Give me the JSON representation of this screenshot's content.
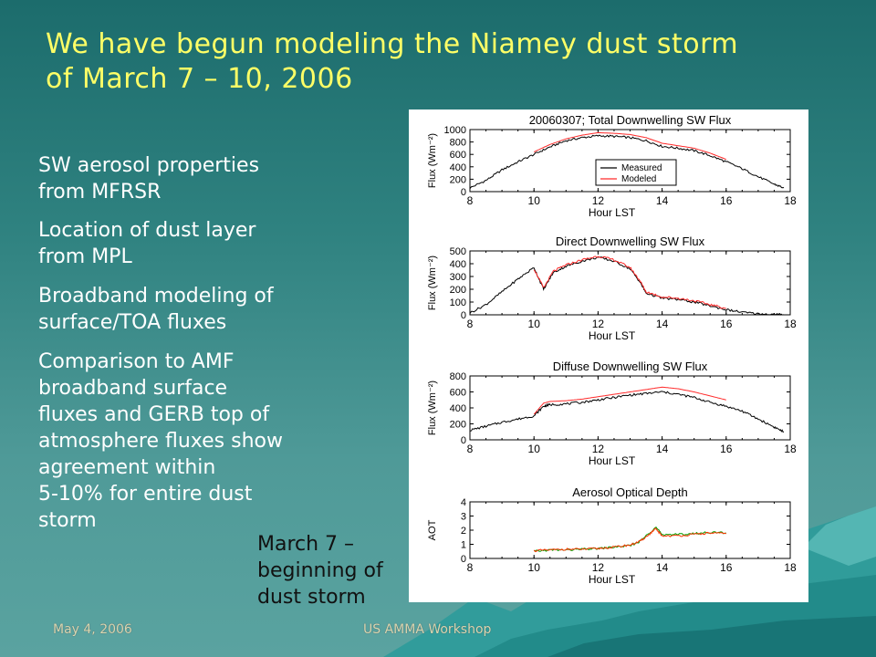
{
  "slide": {
    "title_lines": [
      "We have begun modeling the Niamey dust storm",
      "of March 7 – 10, 2006"
    ],
    "bullets": [
      [
        "SW aerosol properties",
        "from MFRSR"
      ],
      [
        "Location of dust layer",
        "from MPL"
      ],
      [
        "Broadband modeling of",
        "surface/TOA fluxes"
      ],
      [
        "Comparison to AMF",
        "broadband surface",
        "fluxes and GERB top of",
        "atmosphere fluxes show",
        "agreement within",
        "5-10% for entire dust",
        "storm"
      ]
    ],
    "caption_lines": [
      "March 7 –",
      "beginning of",
      "dust storm"
    ],
    "footer_date": "May 4, 2006",
    "footer_event": "US AMMA Workshop",
    "colors": {
      "title": "#ffff66",
      "measured": "#000000",
      "modeled": "#ff2a2a",
      "aot_a": "#00a000",
      "aot_b": "#ff3300"
    }
  },
  "chart_data": [
    {
      "type": "line",
      "title": "20060307; Total Downwelling SW Flux",
      "xlabel": "Hour LST",
      "ylabel": "Flux (Wm⁻²)",
      "xlim": [
        8,
        18
      ],
      "ylim": [
        0,
        1000
      ],
      "xticks": [
        8,
        10,
        12,
        14,
        16,
        18
      ],
      "yticks": [
        0,
        200,
        400,
        600,
        800,
        1000
      ],
      "legend": {
        "placement": "center-right",
        "entries": [
          "Measured",
          "Modeled"
        ]
      },
      "series": [
        {
          "name": "Measured",
          "color": "#000000",
          "noisy": true,
          "x": [
            8.0,
            8.5,
            9.0,
            9.5,
            10.0,
            10.5,
            11.0,
            11.5,
            12.0,
            12.5,
            13.0,
            13.5,
            14.0,
            14.5,
            15.0,
            15.5,
            16.0,
            16.5,
            17.0,
            17.5,
            17.8
          ],
          "y": [
            60,
            180,
            350,
            480,
            600,
            720,
            820,
            870,
            900,
            890,
            870,
            820,
            730,
            700,
            660,
            580,
            480,
            370,
            240,
            120,
            60
          ]
        },
        {
          "name": "Modeled",
          "color": "#ff2a2a",
          "noisy": false,
          "x": [
            10.0,
            10.5,
            11.0,
            11.5,
            12.0,
            12.5,
            13.0,
            13.5,
            14.0,
            14.5,
            15.0,
            15.5,
            16.0
          ],
          "y": [
            640,
            760,
            850,
            910,
            950,
            940,
            920,
            870,
            780,
            740,
            700,
            620,
            520
          ]
        }
      ]
    },
    {
      "type": "line",
      "title": "Direct Downwelling SW Flux",
      "xlabel": "Hour LST",
      "ylabel": "Flux (Wm⁻²)",
      "xlim": [
        8,
        18
      ],
      "ylim": [
        0,
        500
      ],
      "xticks": [
        8,
        10,
        12,
        14,
        16,
        18
      ],
      "yticks": [
        0,
        100,
        200,
        300,
        400,
        500
      ],
      "series": [
        {
          "name": "Measured",
          "color": "#000000",
          "noisy": true,
          "x": [
            8.0,
            8.5,
            9.0,
            9.5,
            10.0,
            10.3,
            10.6,
            11.0,
            11.5,
            12.0,
            12.5,
            13.0,
            13.3,
            13.5,
            14.0,
            14.5,
            15.0,
            15.5,
            16.0,
            16.5,
            17.0,
            17.5,
            17.8
          ],
          "y": [
            15,
            80,
            180,
            280,
            370,
            200,
            330,
            380,
            420,
            450,
            420,
            360,
            260,
            170,
            130,
            120,
            100,
            70,
            40,
            20,
            8,
            3,
            1
          ]
        },
        {
          "name": "Modeled",
          "color": "#ff2a2a",
          "noisy": true,
          "x": [
            10.0,
            10.3,
            10.6,
            11.0,
            11.5,
            12.0,
            12.5,
            13.0,
            13.3,
            13.5,
            14.0,
            14.5,
            15.0,
            15.5,
            16.0
          ],
          "y": [
            360,
            210,
            340,
            390,
            430,
            460,
            430,
            370,
            270,
            180,
            140,
            130,
            110,
            80,
            50
          ]
        }
      ]
    },
    {
      "type": "line",
      "title": "Diffuse Downwelling SW Flux",
      "xlabel": "Hour LST",
      "ylabel": "Flux (Wm⁻²)",
      "xlim": [
        8,
        18
      ],
      "ylim": [
        0,
        800
      ],
      "xticks": [
        8,
        10,
        12,
        14,
        16,
        18
      ],
      "yticks": [
        0,
        200,
        400,
        600,
        800
      ],
      "series": [
        {
          "name": "Measured",
          "color": "#000000",
          "noisy": true,
          "x": [
            8.0,
            8.5,
            9.0,
            9.5,
            10.0,
            10.3,
            10.5,
            11.0,
            11.5,
            12.0,
            12.5,
            13.0,
            13.5,
            14.0,
            14.5,
            15.0,
            15.5,
            16.0,
            16.5,
            17.0,
            17.5,
            17.8
          ],
          "y": [
            120,
            170,
            220,
            260,
            300,
            420,
            440,
            450,
            470,
            500,
            530,
            560,
            580,
            600,
            570,
            530,
            470,
            420,
            360,
            260,
            160,
            100
          ]
        },
        {
          "name": "Modeled",
          "color": "#ff2a2a",
          "noisy": false,
          "x": [
            10.0,
            10.3,
            10.5,
            11.0,
            11.5,
            12.0,
            12.5,
            13.0,
            13.5,
            14.0,
            14.5,
            15.0,
            15.5,
            16.0
          ],
          "y": [
            320,
            460,
            480,
            490,
            510,
            540,
            570,
            600,
            630,
            660,
            640,
            600,
            550,
            500
          ]
        }
      ]
    },
    {
      "type": "line",
      "title": "Aerosol Optical Depth",
      "xlabel": "Hour LST",
      "ylabel": "AOT",
      "xlim": [
        8,
        18
      ],
      "ylim": [
        0,
        4
      ],
      "xticks": [
        8,
        10,
        12,
        14,
        16,
        18
      ],
      "yticks": [
        0,
        1,
        2,
        3,
        4
      ],
      "series": [
        {
          "color": "#00a000",
          "noisy": true,
          "x": [
            10.0,
            10.5,
            11.0,
            11.5,
            12.0,
            12.5,
            13.0,
            13.3,
            13.6,
            13.8,
            14.0,
            14.5,
            15.0,
            15.5,
            16.0
          ],
          "y": [
            0.5,
            0.6,
            0.6,
            0.65,
            0.7,
            0.8,
            0.9,
            1.2,
            1.8,
            2.2,
            1.7,
            1.7,
            1.75,
            1.85,
            1.8
          ]
        },
        {
          "color": "#ff3300",
          "noisy": true,
          "x": [
            10.0,
            10.5,
            11.0,
            11.5,
            12.0,
            12.5,
            13.0,
            13.3,
            13.6,
            13.8,
            14.0,
            14.5,
            15.0,
            15.5,
            16.0
          ],
          "y": [
            0.55,
            0.6,
            0.65,
            0.65,
            0.7,
            0.8,
            0.95,
            1.2,
            1.7,
            2.1,
            1.6,
            1.6,
            1.7,
            1.8,
            1.75
          ]
        }
      ]
    }
  ]
}
